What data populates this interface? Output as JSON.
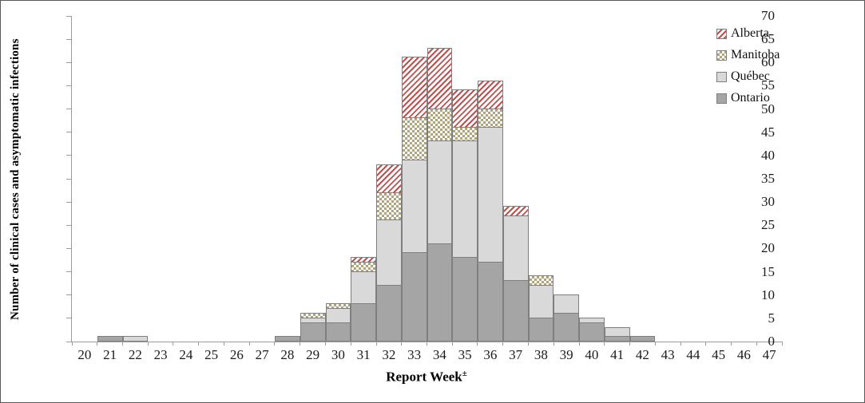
{
  "chart_data": {
    "type": "bar",
    "stacked": true,
    "title": "",
    "xlabel": "Report Week",
    "xlabel_superscript": "±",
    "ylabel": "Number of clinical  cases and asymptomatic infections",
    "ylim": [
      0,
      70
    ],
    "ytick_step": 5,
    "grid": false,
    "legend_position": "top-right",
    "axis_color": "#9c9c9c",
    "segment_border_color": "#7f7f7f",
    "categories": [
      20,
      21,
      22,
      23,
      24,
      25,
      26,
      27,
      28,
      29,
      30,
      31,
      32,
      33,
      34,
      35,
      36,
      37,
      38,
      39,
      40,
      41,
      42,
      43,
      44,
      45,
      46,
      47
    ],
    "series": [
      {
        "name": "Ontario",
        "color": "#a5a5a5",
        "pattern": "solid",
        "values": [
          0,
          1,
          0,
          0,
          0,
          0,
          0,
          0,
          1,
          4,
          4,
          8,
          12,
          19,
          21,
          18,
          17,
          13,
          5,
          6,
          4,
          1,
          1,
          0,
          0,
          0,
          0,
          0
        ]
      },
      {
        "name": "Québec",
        "color": "#d9d9d9",
        "pattern": "solid",
        "values": [
          0,
          0,
          1,
          0,
          0,
          0,
          0,
          0,
          0,
          1,
          3,
          7,
          14,
          20,
          22,
          25,
          29,
          14,
          7,
          4,
          1,
          2,
          0,
          0,
          0,
          0,
          0,
          0
        ]
      },
      {
        "name": "Manitoba",
        "color": "#b1a478",
        "pattern": "checker",
        "values": [
          0,
          0,
          0,
          0,
          0,
          0,
          0,
          0,
          0,
          1,
          1,
          2,
          6,
          9,
          7,
          3,
          4,
          0,
          2,
          0,
          0,
          0,
          0,
          0,
          0,
          0,
          0,
          0
        ]
      },
      {
        "name": "Alberta",
        "color": "#c0504d",
        "pattern": "stripe",
        "values": [
          0,
          0,
          0,
          0,
          0,
          0,
          0,
          0,
          0,
          0,
          0,
          1,
          6,
          13,
          13,
          8,
          6,
          2,
          0,
          0,
          0,
          0,
          0,
          0,
          0,
          0,
          0,
          0
        ]
      }
    ],
    "legend_order": [
      "Alberta",
      "Manitoba",
      "Québec",
      "Ontario"
    ]
  }
}
